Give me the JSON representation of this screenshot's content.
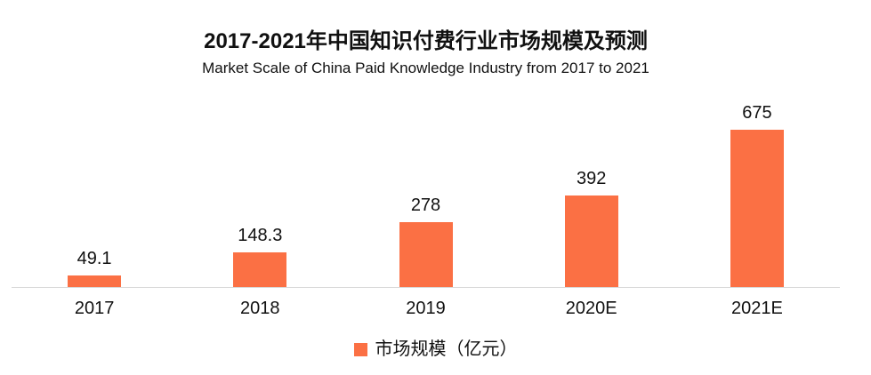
{
  "chart_data": {
    "type": "bar",
    "title": "2017-2021年中国知识付费行业市场规模及预测",
    "subtitle": "Market Scale of China Paid Knowledge Industry from 2017 to 2021",
    "categories": [
      "2017",
      "2018",
      "2019",
      "2020E",
      "2021E"
    ],
    "series": [
      {
        "name": "市场规模（亿元）",
        "values": [
          49.1,
          148.3,
          278,
          392,
          675
        ]
      }
    ],
    "value_labels": [
      "49.1",
      "148.3",
      "278",
      "392",
      "675"
    ],
    "xlabel": "",
    "ylabel": "",
    "ylim": [
      0,
      812
    ],
    "grid": false,
    "legend_position": "bottom",
    "colors": {
      "bar": "#FB7044",
      "axis_line": "#D9D9D9",
      "text": "#111111"
    }
  }
}
